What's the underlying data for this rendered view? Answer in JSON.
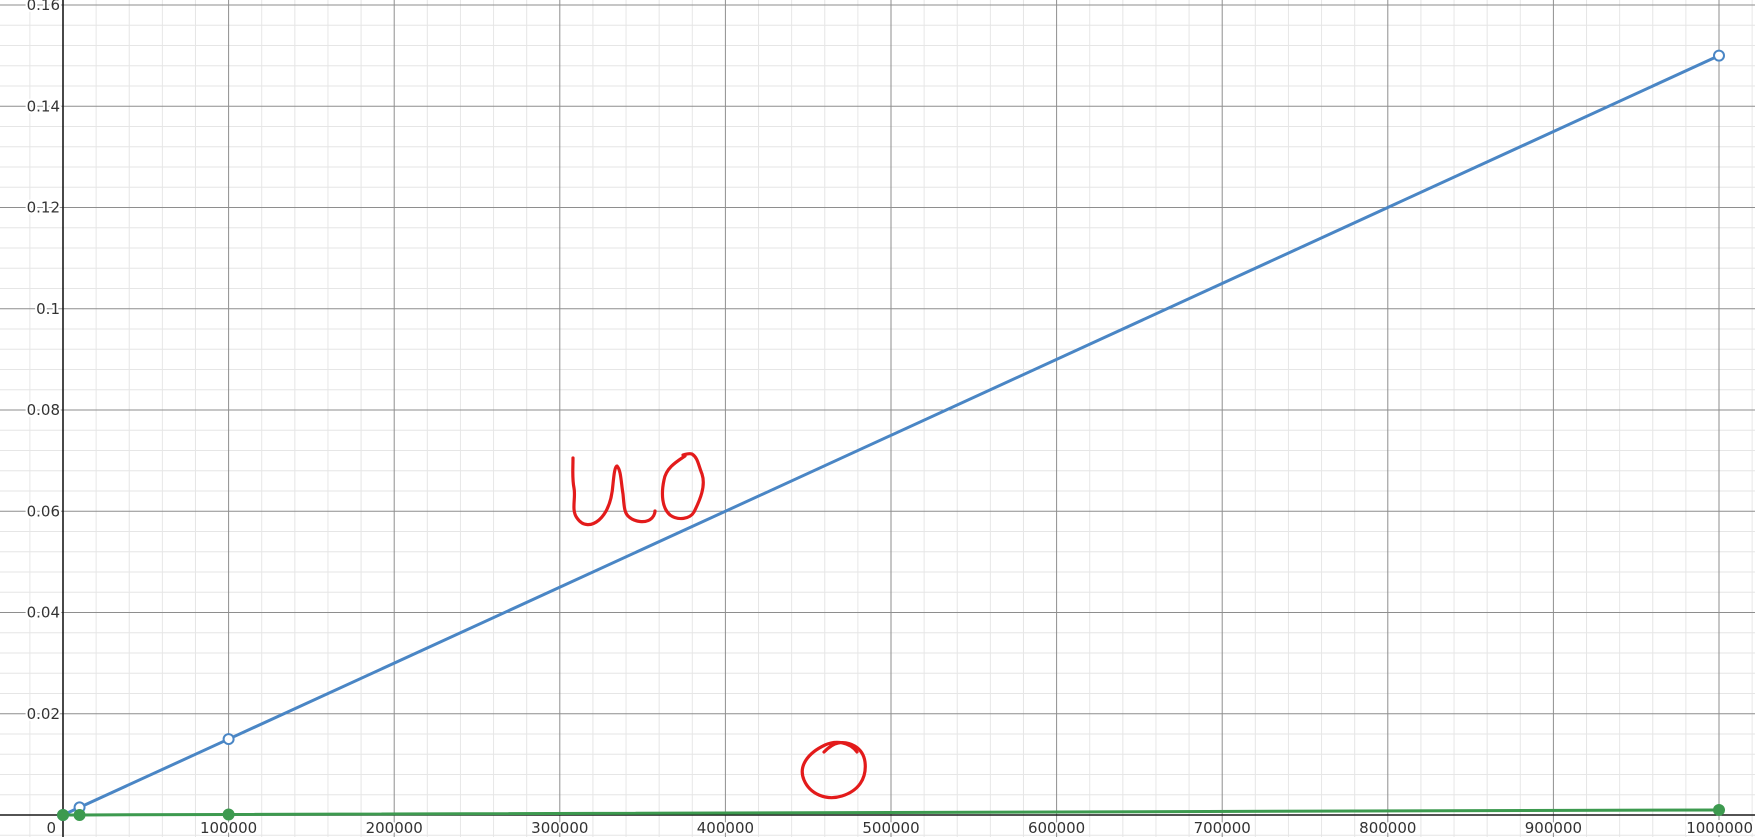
{
  "chart_data": {
    "type": "line",
    "title": "",
    "xlabel": "",
    "ylabel": "",
    "xlim": [
      0,
      1060000
    ],
    "ylim": [
      0,
      0.16
    ],
    "x_ticks": [
      "0",
      "100000",
      "200000",
      "300000",
      "400000",
      "500000",
      "600000",
      "700000",
      "800000",
      "900000",
      "1000000"
    ],
    "y_ticks": [
      "0.02",
      "0.04",
      "0.06",
      "0.08",
      "0.1",
      "0.12",
      "0.14",
      "0.16"
    ],
    "grid": true,
    "series": [
      {
        "name": "blue-series",
        "color": "#4a86c5",
        "marker": "open-circle",
        "x": [
          0,
          10000,
          100000,
          1000000
        ],
        "y": [
          0,
          0.0015,
          0.015,
          0.15
        ]
      },
      {
        "name": "green-series",
        "color": "#3d9a4f",
        "marker": "filled-circle",
        "x": [
          0,
          10000,
          100000,
          1000000
        ],
        "y": [
          0,
          1e-05,
          0.0001,
          0.001
        ]
      }
    ],
    "annotations": [
      {
        "text": "UO",
        "target": "blue-series",
        "color": "#e31b1b",
        "style": "handwritten"
      },
      {
        "text": "O",
        "target": "green-series",
        "color": "#e31b1b",
        "style": "handwritten"
      }
    ]
  }
}
